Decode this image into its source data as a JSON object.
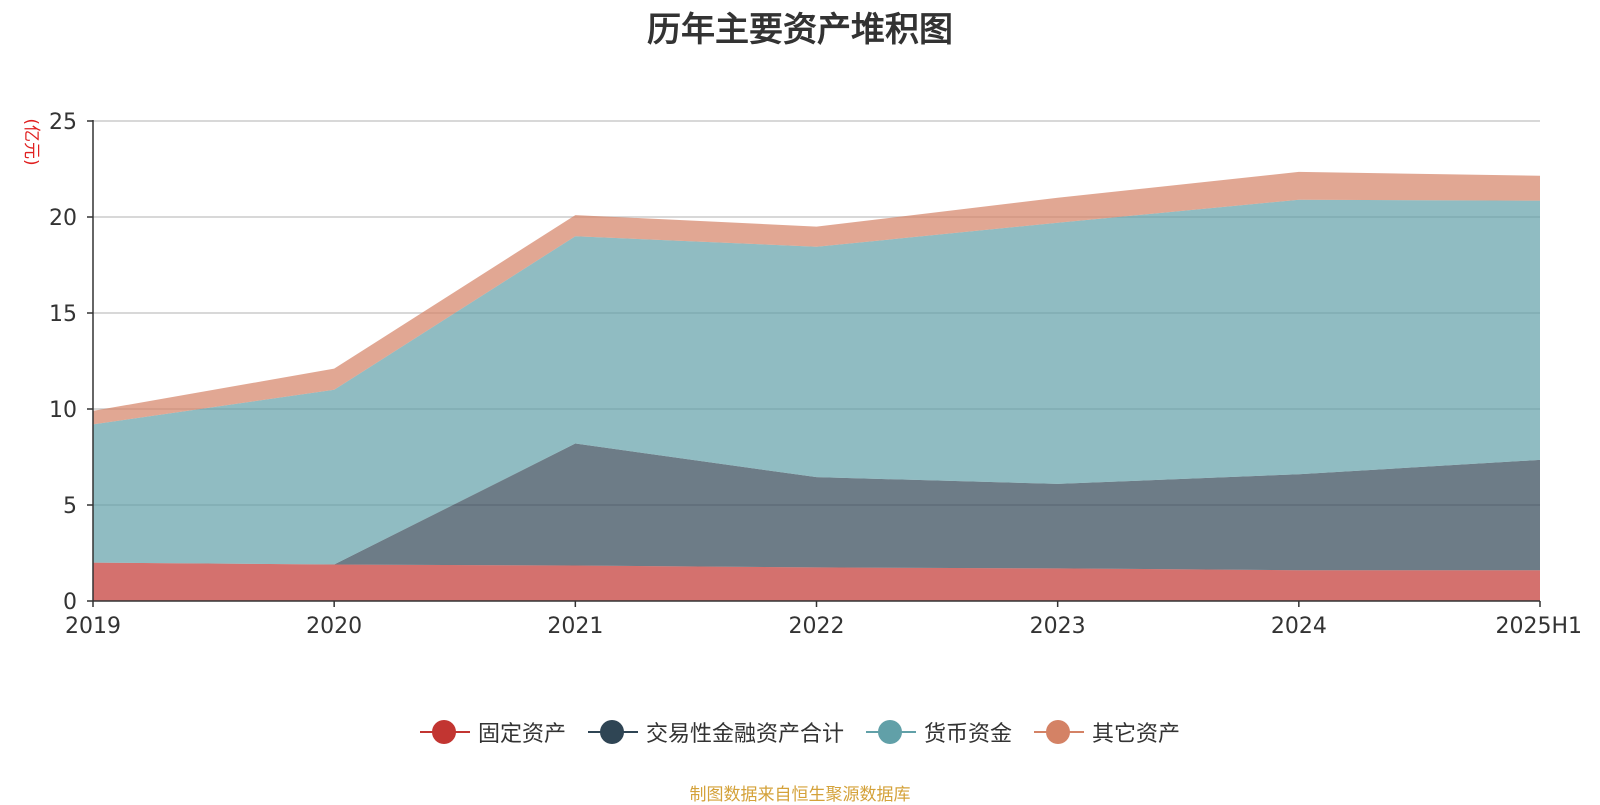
{
  "chart_data": {
    "type": "area",
    "stacked": true,
    "title": "历年主要资产堆积图",
    "ylabel": "(亿元)",
    "xlabel": "",
    "categories": [
      "2019",
      "2020",
      "2021",
      "2022",
      "2023",
      "2024",
      "2025H1"
    ],
    "ylim": [
      0,
      25
    ],
    "yticks": [
      0,
      5,
      10,
      15,
      20,
      25
    ],
    "grid": true,
    "legend_position": "bottom",
    "series": [
      {
        "name": "固定资产",
        "color": "#c23531",
        "values": [
          2.0,
          1.9,
          1.85,
          1.75,
          1.7,
          1.6,
          1.6
        ]
      },
      {
        "name": "交易性金融资产合计",
        "color": "#2f4554",
        "values": [
          0.0,
          0.0,
          6.35,
          4.7,
          4.4,
          5.0,
          5.75
        ]
      },
      {
        "name": "货币资金",
        "color": "#61a0a8",
        "values": [
          7.2,
          9.1,
          10.8,
          12.0,
          13.6,
          14.3,
          13.5
        ]
      },
      {
        "name": "其它资产",
        "color": "#d48265",
        "values": [
          0.7,
          1.1,
          1.1,
          1.05,
          1.3,
          1.45,
          1.3
        ]
      }
    ]
  },
  "source_note": "制图数据来自恒生聚源数据库"
}
